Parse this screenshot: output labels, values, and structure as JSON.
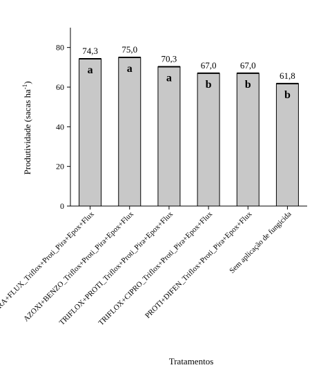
{
  "chart_data": {
    "type": "bar",
    "categories": [
      "PIRA+FLUX_Triflox+Proti_Pira+Epox+Flux",
      "AZOXI+BENZO_Triflox+Proti_Pira+Epox+Flux",
      "TRIFLOX+PROTI_Triflox+Proti_Pira+Epox+Flux",
      "TRIFLOX+CIPRO_Triflox+Proti_Pira+Epox+Flux",
      "PROTI+DIFEN_Triflox+Proti_Pira+Epox+Flux",
      "Sem aplicação de fungicida"
    ],
    "values": [
      74.3,
      75.0,
      70.3,
      67.0,
      67.0,
      61.8
    ],
    "value_labels": [
      "74,3",
      "75,0",
      "70,3",
      "67,0",
      "67,0",
      "61,8"
    ],
    "letters": [
      "a",
      "a",
      "a",
      "b",
      "b",
      "b"
    ],
    "ylabel": "Produtividade (sacas ha",
    "ylabel_sup": "-1",
    "ylabel_end": ")",
    "xlabel": "Tratamentos",
    "ylim": [
      0,
      90
    ],
    "yticks": [
      0,
      20,
      40,
      60,
      80
    ],
    "bar_color": "#c8c8c8",
    "bar_stroke": "#000000",
    "grid": false
  }
}
